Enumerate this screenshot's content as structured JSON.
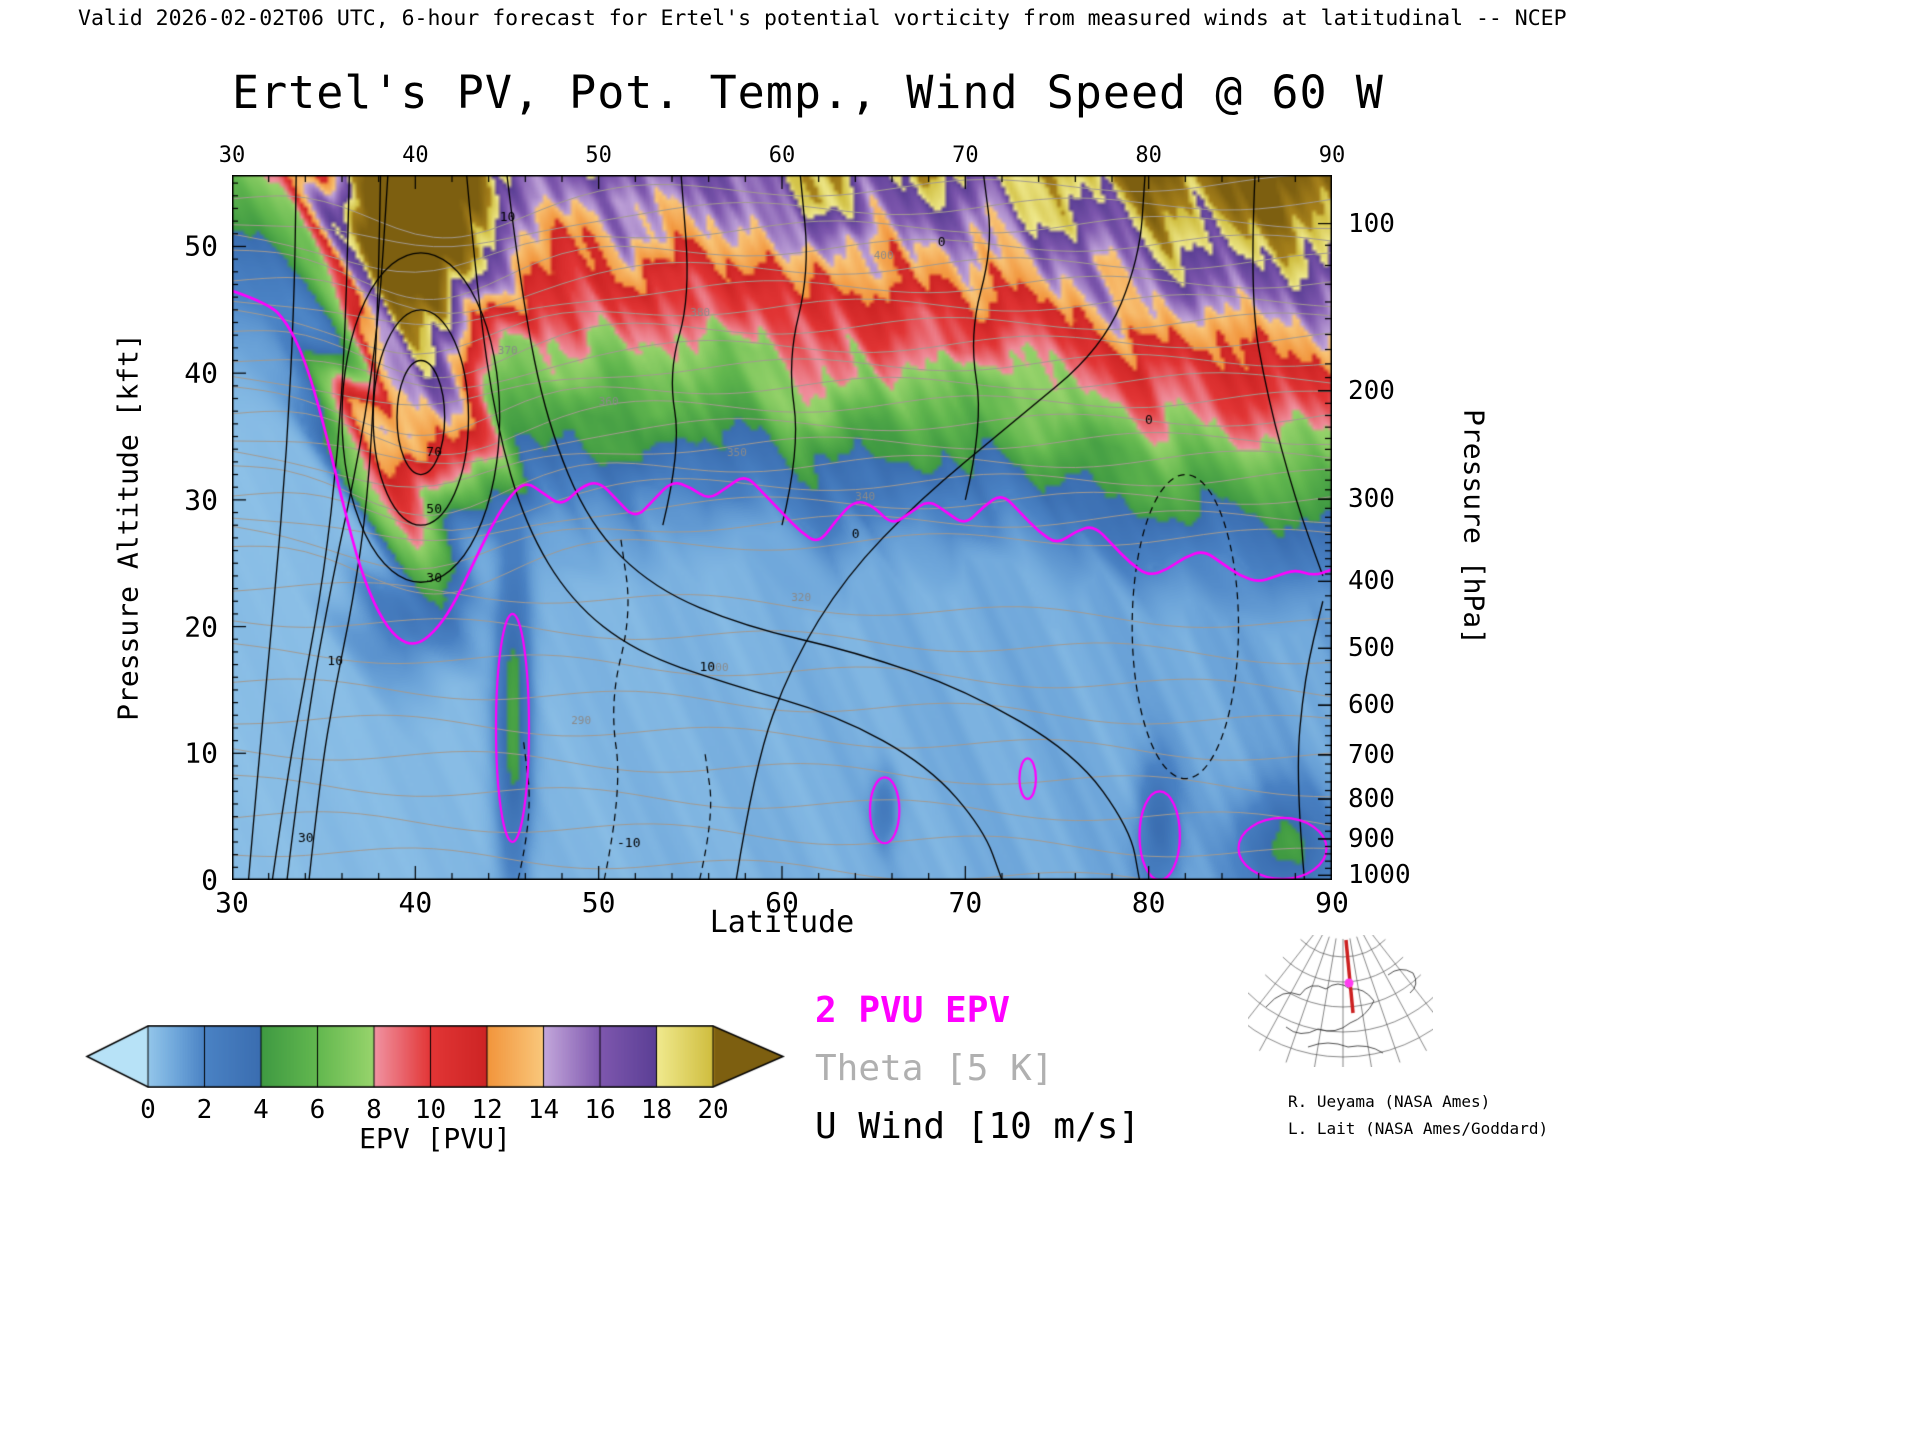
{
  "header": {
    "text": "Valid 2026-02-02T06 UTC, 6-hour forecast for Ertel's potential vorticity from measured winds at latitudinal -- NCEP"
  },
  "plot": {
    "title": "Ertel's PV, Pot. Temp., Wind Speed @ 60 W",
    "x_axis": {
      "label": "Latitude",
      "ticks": [
        30,
        40,
        50,
        60,
        70,
        80,
        90
      ],
      "range": [
        30,
        90
      ]
    },
    "y_axis_left": {
      "label": "Pressure Altitude [kft]",
      "ticks": [
        0,
        10,
        20,
        30,
        40,
        50
      ],
      "range": [
        0,
        55.64
      ]
    },
    "y_axis_right": {
      "label": "Pressure [hPa]",
      "ticks": [
        100,
        200,
        300,
        400,
        500,
        600,
        700,
        800,
        900,
        1000
      ]
    }
  },
  "colorbar": {
    "label": "EPV [PVU]",
    "ticks": [
      0,
      2,
      4,
      6,
      8,
      10,
      12,
      14,
      16,
      18,
      20
    ],
    "stops": [
      {
        "v": -2,
        "c": "#b7e2f7"
      },
      {
        "v": 0,
        "c": "#93c6ea"
      },
      {
        "v": 1,
        "c": "#6ea6da"
      },
      {
        "v": 2,
        "c": "#4a82c4"
      },
      {
        "v": 3.99,
        "c": "#3a6db0"
      },
      {
        "v": 4,
        "c": "#3f9a42"
      },
      {
        "v": 6,
        "c": "#63b84f"
      },
      {
        "v": 7.99,
        "c": "#98d46c"
      },
      {
        "v": 8,
        "c": "#f093a2"
      },
      {
        "v": 10,
        "c": "#e23535"
      },
      {
        "v": 11.99,
        "c": "#cd2424"
      },
      {
        "v": 12,
        "c": "#f2953c"
      },
      {
        "v": 13.99,
        "c": "#f9c87c"
      },
      {
        "v": 14,
        "c": "#c3a7db"
      },
      {
        "v": 16,
        "c": "#7e57ae"
      },
      {
        "v": 17.99,
        "c": "#5b3f95"
      },
      {
        "v": 18,
        "c": "#f0ea8e"
      },
      {
        "v": 19.99,
        "c": "#cfbd3e"
      },
      {
        "v": 20,
        "c": "#a9831c"
      },
      {
        "v": 23,
        "c": "#7d5f10"
      }
    ]
  },
  "legend": {
    "items": [
      {
        "label": "2 PVU EPV",
        "color": "#ff00ff"
      },
      {
        "label": "Theta [5 K]",
        "color": "#b0b0b0"
      },
      {
        "label": "U Wind [10 m/s]",
        "color": "#000000"
      }
    ]
  },
  "credits": {
    "line1": "R. Ueyama (NASA Ames)",
    "line2": "L. Lait (NASA Ames/Goddard)"
  },
  "chart_data": {
    "type": "heatmap",
    "title": "Ertel's PV, Pot. Temp., Wind Speed @ 60 W",
    "xlabel": "Latitude",
    "x_range": [
      30,
      90
    ],
    "ylabel": "Pressure Altitude [kft]",
    "y_range": [
      0,
      55.64
    ],
    "y2label": "Pressure [hPa]",
    "y2_ticks": [
      100,
      200,
      300,
      400,
      500,
      600,
      700,
      800,
      900,
      1000
    ],
    "fill_field": "Ertel potential vorticity [PVU]",
    "fill_levels": [
      0,
      2,
      4,
      6,
      8,
      10,
      12,
      14,
      16,
      18,
      20
    ],
    "overlays": [
      "2 PVU EPV contour (magenta)",
      "Theta contours every 5 K (gray)",
      "U wind contours every 10 m/s (black, dashed negative)"
    ],
    "series": [
      {
        "name": "2 PVU EPV tropopause height [kft]",
        "color": "#ff00ff",
        "x": [
          30,
          32,
          33,
          34,
          35,
          36,
          37,
          38,
          39,
          40,
          41,
          42,
          43,
          44,
          45,
          46,
          47,
          48,
          49,
          50,
          51,
          52,
          53,
          54,
          55,
          56,
          57,
          58,
          59,
          60,
          61,
          62,
          63,
          64,
          65,
          66,
          67,
          68,
          69,
          70,
          71,
          72,
          73,
          74,
          75,
          76,
          77,
          78,
          79,
          80,
          81,
          82,
          83,
          84,
          85,
          86,
          87,
          88,
          89,
          90
        ],
        "y": [
          46.5,
          45.5,
          44,
          41,
          36,
          30,
          24.5,
          21,
          19,
          18.5,
          19.5,
          21.5,
          24.5,
          27.5,
          30,
          31.5,
          30.5,
          29.5,
          31,
          31.5,
          30,
          28.5,
          30,
          31.5,
          31,
          30,
          31,
          32,
          30.5,
          29,
          27.5,
          26.5,
          28.5,
          30,
          29.5,
          28,
          29,
          30,
          29,
          28,
          29.5,
          30.5,
          29,
          27.5,
          26.5,
          27.5,
          28,
          26.5,
          25,
          24,
          24.5,
          25.5,
          26,
          25,
          24,
          23.5,
          24,
          24.5,
          24,
          24.5
        ]
      }
    ],
    "contour_labels": {
      "u_wind": [
        {
          "text": "70",
          "lat": 40.6,
          "z": 33.5
        },
        {
          "text": "50",
          "lat": 40.6,
          "z": 29
        },
        {
          "text": "30",
          "lat": 40.6,
          "z": 23.5
        },
        {
          "text": "30",
          "lat": 33.6,
          "z": 3
        },
        {
          "text": "10",
          "lat": 35.2,
          "z": 17
        },
        {
          "text": "10",
          "lat": 55.5,
          "z": 16.5
        },
        {
          "text": "10",
          "lat": 44.6,
          "z": 52
        },
        {
          "text": "0",
          "lat": 63.8,
          "z": 27
        },
        {
          "text": "0",
          "lat": 79.8,
          "z": 36
        },
        {
          "text": "0",
          "lat": 68.5,
          "z": 50
        },
        {
          "text": "-10",
          "lat": 51.0,
          "z": 2.6
        }
      ],
      "theta": [
        {
          "text": "290",
          "lat": 48.5,
          "z": 12.3
        },
        {
          "text": "300",
          "lat": 56,
          "z": 16.5
        },
        {
          "text": "320",
          "lat": 60.5,
          "z": 22
        },
        {
          "text": "340",
          "lat": 64,
          "z": 30
        },
        {
          "text": "350",
          "lat": 57,
          "z": 33.5
        },
        {
          "text": "360",
          "lat": 50,
          "z": 37.5
        },
        {
          "text": "370",
          "lat": 44.5,
          "z": 41.5
        },
        {
          "text": "380",
          "lat": 55,
          "z": 44.5
        },
        {
          "text": "400",
          "lat": 65,
          "z": 49
        }
      ]
    }
  }
}
